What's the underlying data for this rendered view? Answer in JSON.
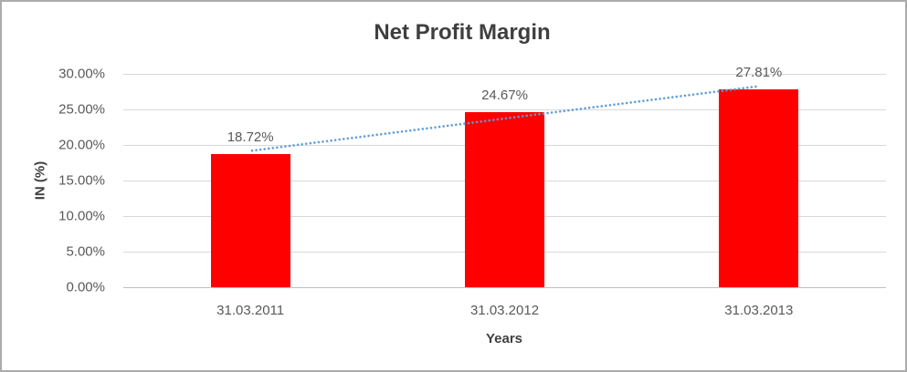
{
  "chart_data": {
    "type": "bar",
    "title": "Net Profit Margin",
    "xlabel": "Years",
    "ylabel": "IN (%)",
    "categories": [
      "31.03.2011",
      "31.03.2012",
      "31.03.2013"
    ],
    "values": [
      18.72,
      24.67,
      27.81
    ],
    "data_labels": [
      "18.72%",
      "24.67%",
      "27.81%"
    ],
    "yticks": [
      "30.00%",
      "25.00%",
      "20.00%",
      "15.00%",
      "10.00%",
      "5.00%",
      "0.00%"
    ],
    "ytick_values": [
      30,
      25,
      20,
      15,
      10,
      5,
      0
    ],
    "ylim": [
      0,
      30
    ],
    "grid": true,
    "legend": "none",
    "trendline": {
      "type": "linear",
      "dash": "dotted"
    },
    "colors": {
      "bar": "#FF0000",
      "trendline": "#5B9BD5",
      "gridline": "#D9D9D9",
      "axis_line": "#C0C0C0",
      "title_text": "#3F3F3F",
      "tick_text": "#595959",
      "data_label_text": "#595959",
      "axis_title_text": "#404040",
      "frame_border": "#ABABAB"
    }
  }
}
